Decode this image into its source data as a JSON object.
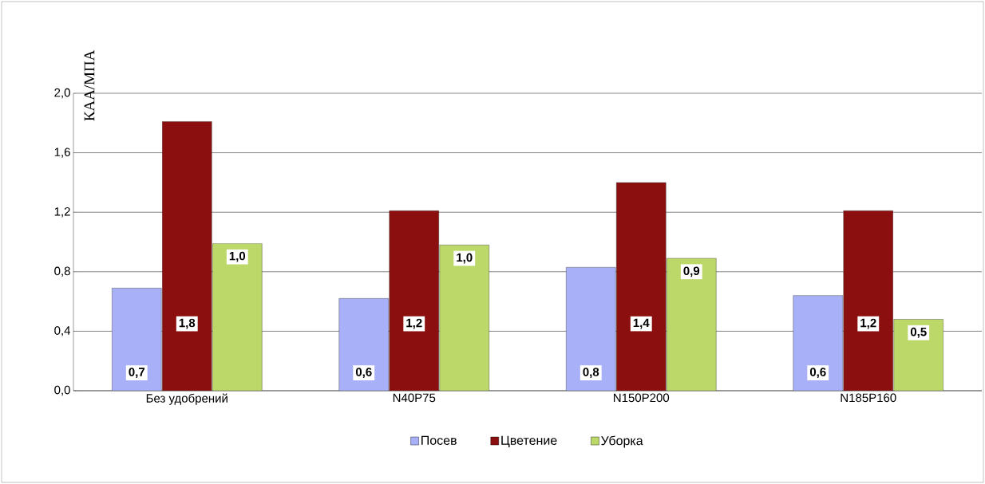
{
  "chart_data": {
    "type": "bar",
    "ylabel": "КАА/МПА",
    "categories": [
      "Без удобрений",
      "N40P75",
      "N150P200",
      "N185P160"
    ],
    "series": [
      {
        "name": "Посев",
        "color": "#a8b0f8",
        "values": [
          0.69,
          0.62,
          0.83,
          0.64
        ],
        "value_labels": [
          "0,7",
          "0,6",
          "0,8",
          "0,6"
        ]
      },
      {
        "name": "Цветение",
        "color": "#8b0f0f",
        "values": [
          1.81,
          1.21,
          1.4,
          1.21
        ],
        "value_labels": [
          "1,8",
          "1,2",
          "1,4",
          "1,2"
        ]
      },
      {
        "name": "Уборка",
        "color": "#bcd868",
        "values": [
          0.99,
          0.98,
          0.89,
          0.48
        ],
        "value_labels": [
          "1,0",
          "1,0",
          "0,9",
          "0,5"
        ]
      }
    ],
    "ylim": [
      0,
      2
    ],
    "yticks": [
      {
        "value": 0,
        "label": "0,0"
      },
      {
        "value": 0.4,
        "label": "0,4"
      },
      {
        "value": 0.8,
        "label": "0,8"
      },
      {
        "value": 1.2,
        "label": "1,2"
      },
      {
        "value": 1.6,
        "label": "1,6"
      },
      {
        "value": 2,
        "label": "2,0"
      }
    ],
    "grid": "y",
    "legend": "bottom"
  }
}
